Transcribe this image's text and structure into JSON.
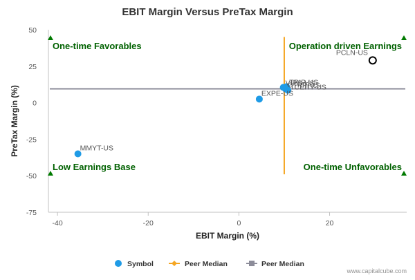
{
  "chart_data": {
    "type": "scatter",
    "title": "EBIT Margin Versus PreTax Margin",
    "xlabel": "EBIT Margin (%)",
    "ylabel": "PreTax Margin (%)",
    "xlim": [
      -42,
      37
    ],
    "ylim": [
      -75,
      50
    ],
    "xticks": [
      "-40",
      "-20",
      "0",
      "20"
    ],
    "xtick_values": [
      -40,
      -20,
      0,
      20
    ],
    "yticks": [
      "50",
      "25",
      "0",
      "-25",
      "-50",
      "-75"
    ],
    "ytick_values": [
      50,
      25,
      0,
      -25,
      -50,
      -75
    ],
    "grid": false,
    "points": [
      {
        "label": "PCLN-US",
        "x": 29.5,
        "y": 29,
        "highlight": true
      },
      {
        "label": "TRIP-US",
        "x": 10.5,
        "y": 11
      },
      {
        "label": "VIPS-US",
        "x": 9.8,
        "y": 10.5
      },
      {
        "label": "CTRP-US",
        "x": 10.3,
        "y": 9.5
      },
      {
        "label": "TCEHY-US",
        "x": 10.8,
        "y": 8.5
      },
      {
        "label": "EXPE-US",
        "x": 4.5,
        "y": 2.5
      },
      {
        "label": "MMYT-US",
        "x": -35.5,
        "y": -35
      }
    ],
    "peer_median_x": 10,
    "peer_median_y": 9.5,
    "quadrant_labels": {
      "top_left": "One-time Favorables",
      "top_right": "Operation driven Earnings",
      "bottom_left": "Low Earnings Base",
      "bottom_right": "One-time Unfavorables"
    },
    "legend": [
      {
        "name": "Symbol",
        "color": "#1f9be6"
      },
      {
        "name": "Peer Median",
        "color": "#f5a623"
      },
      {
        "name": "Peer Median",
        "color": "#8c8c99"
      }
    ],
    "legend_position": "bottom",
    "colors": {
      "point": "#1f9be6",
      "vmedian": "#f5a623",
      "hmedian": "#8c8c99",
      "quad_text": "#006100",
      "triangle": "#007a00"
    }
  },
  "credit": "www.capitalcube.com"
}
